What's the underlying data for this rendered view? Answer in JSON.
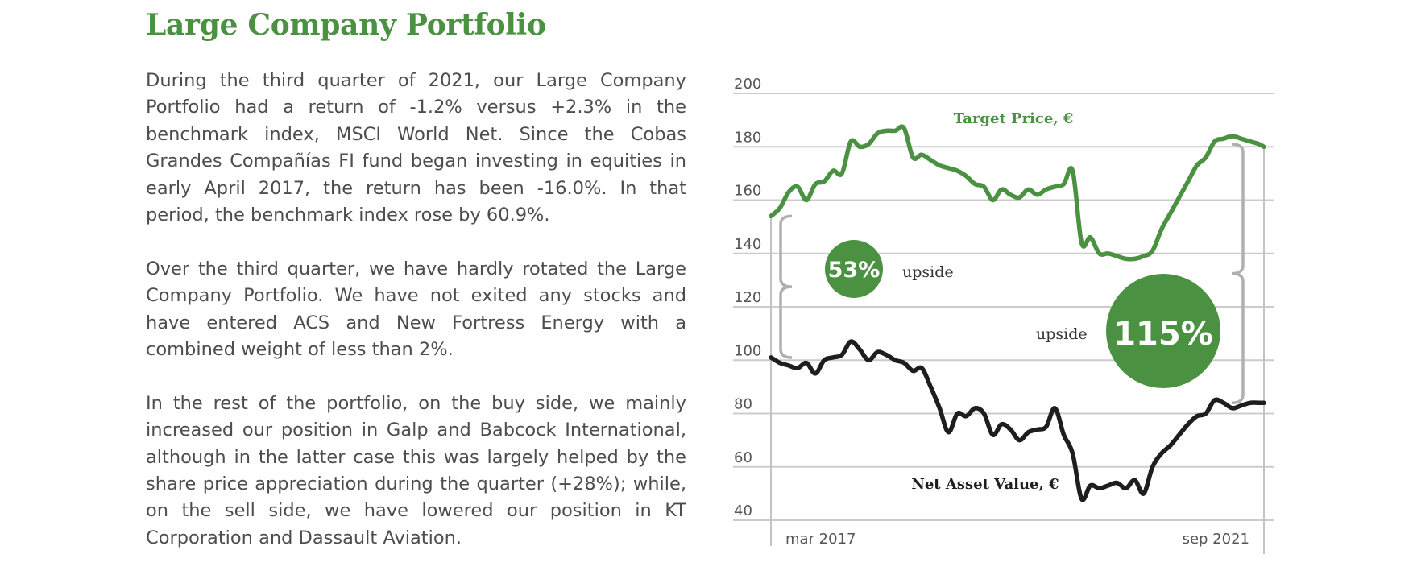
{
  "page": {
    "title": "Large Company Portfolio",
    "paragraphs": [
      "During the third quarter of 2021, our Large Company Portfolio had a return of -1.2% versus +2.3% in the benchmark index, MSCI World Net. Since the Cobas Grandes Compañías FI fund began investing in equities in early April 2017, the return has been -16.0%. In that period, the benchmark index rose by 60.9%.",
      "Over the third quarter, we have hardly rotated the Large Company Portfolio. We have not exited any stocks and have entered ACS and New Fortress Energy with a combined weight of less than 2%.",
      "In the rest of the portfolio, on the buy side, we mainly increased our position in Galp and Babcock International, although in the latter case this was largely helped by the share price appreciation during the quarter (+28%); while, on the sell side, we have lowered our position in KT Corporation and Dassault Aviation."
    ]
  },
  "colors": {
    "title": "#4a9141",
    "target_line": "#4a9141",
    "nav_line": "#1e1e1e",
    "badge": "#4a9141",
    "bracket": "#b0b0b0",
    "grid": "#cccccc"
  },
  "chart_data": {
    "type": "line",
    "x_start_label": "mar 2017",
    "x_end_label": "sep 2021",
    "ylim": [
      40,
      200
    ],
    "yticks": [
      200,
      180,
      160,
      140,
      120,
      100,
      80,
      60,
      40
    ],
    "grid": "horizontal",
    "series": [
      {
        "name": "Target Price, €",
        "x": [
          0,
          0.018,
          0.036,
          0.054,
          0.072,
          0.09,
          0.108,
          0.126,
          0.144,
          0.162,
          0.18,
          0.198,
          0.216,
          0.234,
          0.252,
          0.27,
          0.288,
          0.306,
          0.324,
          0.342,
          0.36,
          0.378,
          0.396,
          0.414,
          0.432,
          0.45,
          0.468,
          0.486,
          0.504,
          0.522,
          0.54,
          0.558,
          0.576,
          0.594,
          0.612,
          0.63,
          0.648,
          0.666,
          0.684,
          0.702,
          0.72,
          0.738,
          0.756,
          0.774,
          0.792,
          0.81,
          0.828,
          0.846,
          0.864,
          0.882,
          0.9,
          0.918,
          0.936,
          0.954,
          0.972,
          0.99,
          1.0
        ],
        "values": [
          154,
          157,
          163,
          165,
          160,
          166,
          167,
          171,
          170,
          182,
          180,
          181,
          185,
          186,
          186,
          187,
          176,
          177,
          175,
          173,
          172,
          171,
          169,
          166,
          165,
          160,
          164,
          162,
          161,
          164,
          162,
          164,
          165,
          166,
          171,
          144,
          146,
          140,
          140,
          139,
          138,
          138,
          139,
          141,
          149,
          155,
          161,
          167,
          173,
          176,
          182,
          183,
          184,
          183,
          182,
          181,
          180
        ]
      },
      {
        "name": "Net Asset Value, €",
        "x": [
          0,
          0.018,
          0.036,
          0.054,
          0.072,
          0.09,
          0.108,
          0.126,
          0.144,
          0.162,
          0.18,
          0.198,
          0.216,
          0.234,
          0.252,
          0.27,
          0.288,
          0.306,
          0.324,
          0.342,
          0.36,
          0.378,
          0.396,
          0.414,
          0.432,
          0.45,
          0.468,
          0.486,
          0.504,
          0.522,
          0.54,
          0.558,
          0.576,
          0.594,
          0.612,
          0.63,
          0.648,
          0.666,
          0.684,
          0.702,
          0.72,
          0.738,
          0.756,
          0.774,
          0.792,
          0.81,
          0.828,
          0.846,
          0.864,
          0.882,
          0.9,
          0.918,
          0.936,
          0.954,
          0.972,
          0.99,
          1.0
        ],
        "values": [
          101,
          99,
          98,
          97,
          99,
          95,
          100,
          101,
          102,
          107,
          104,
          100,
          103,
          102,
          100,
          99,
          96,
          97,
          90,
          82,
          73,
          80,
          79,
          82,
          80,
          72,
          76,
          74,
          70,
          73,
          74,
          75,
          82,
          72,
          65,
          48,
          53,
          52,
          53,
          54,
          52,
          55,
          50,
          60,
          65,
          68,
          72,
          76,
          79,
          80,
          85,
          84,
          82,
          83,
          84,
          84,
          84
        ]
      }
    ],
    "annotations": [
      {
        "value": "53%",
        "caption": "upside"
      },
      {
        "value": "115%",
        "caption": "upside"
      }
    ]
  }
}
